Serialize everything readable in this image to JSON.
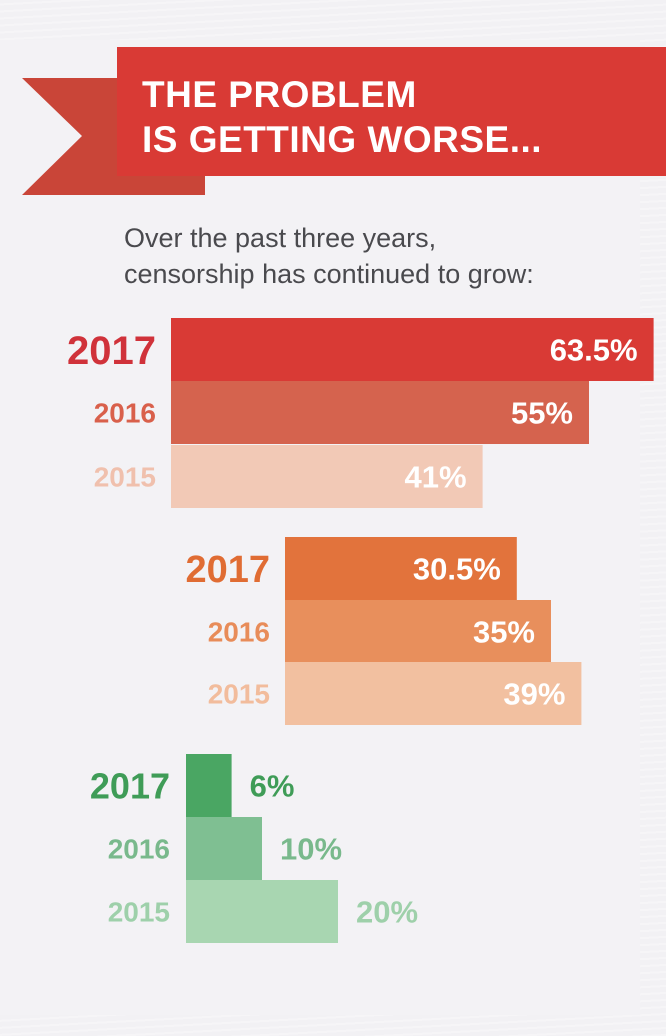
{
  "header": {
    "title": "THE PROBLEM\nIS GETTING WORSE...",
    "subtitle": "Over the past three years,\ncensorship has continued to grow:"
  },
  "colors": {
    "banner": "#d93a35",
    "banner_tail": "#c94538",
    "group_colors": [
      [
        "#d93a35",
        "#d5634e",
        "#f2c9b6"
      ],
      [
        "#e2733c",
        "#e88f5c",
        "#f2c0a0"
      ],
      [
        "#4aa663",
        "#7fbf92",
        "#a8d6b1"
      ]
    ],
    "label_colors": [
      [
        "#d0323a",
        "#d9604b",
        "#f0c0ad"
      ],
      [
        "#e06c33",
        "#e88c59",
        "#f2bc9c"
      ],
      [
        "#3f9c57",
        "#79b98c",
        "#9ed0aa"
      ]
    ]
  },
  "chart_data": {
    "type": "bar",
    "orientation": "horizontal",
    "title": "THE PROBLEM IS GETTING WORSE...",
    "subtitle": "Over the past three years, censorship has continued to grow:",
    "unit": "%",
    "groups": [
      {
        "name": "group-1",
        "categories": [
          "2017",
          "2016",
          "2015"
        ],
        "values": [
          63.5,
          55,
          41
        ],
        "labels": [
          "63.5%",
          "55%",
          "41%"
        ]
      },
      {
        "name": "group-2",
        "categories": [
          "2017",
          "2016",
          "2015"
        ],
        "values": [
          30.5,
          35,
          39
        ],
        "labels": [
          "30.5%",
          "35%",
          "39%"
        ]
      },
      {
        "name": "group-3",
        "categories": [
          "2017",
          "2016",
          "2015"
        ],
        "values": [
          6,
          10,
          20
        ],
        "labels": [
          "6%",
          "10%",
          "20%"
        ]
      }
    ]
  }
}
